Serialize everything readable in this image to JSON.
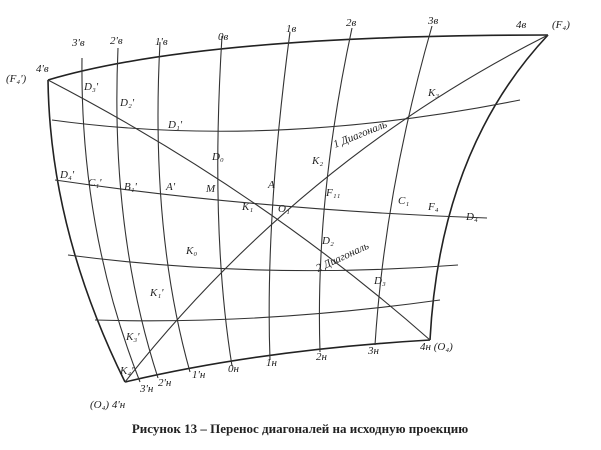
{
  "figure": {
    "caption": "Рисунок 13 – Перенос диагоналей на исходную проекцию",
    "top_labels": [
      "4'в",
      "3'в",
      "2'в",
      "1'в",
      "0в",
      "1в",
      "2в",
      "3в",
      "4в",
      "(F₄)",
      "(F₄')"
    ],
    "point_labels": [
      "D₃'",
      "D₂'",
      "D₁'",
      "D₀",
      "K₂",
      "K₃",
      "D₄'",
      "C₁'",
      "B₁'",
      "A'",
      "M",
      "A",
      "K₁",
      "O₁",
      "F₁₁",
      "C₁",
      "F₄",
      "D₄",
      "D₂",
      "D₃",
      "K₀",
      "K₁'",
      "K₃'",
      "K₄'"
    ],
    "diagonal_labels": [
      "1 Диагональ",
      "2 Диагональ"
    ],
    "bottom_labels": [
      "(O₄) 4'н",
      "3'н",
      "2'н",
      "1'н",
      "0н",
      "1н",
      "2н",
      "3н",
      "4н (O₄)"
    ]
  }
}
